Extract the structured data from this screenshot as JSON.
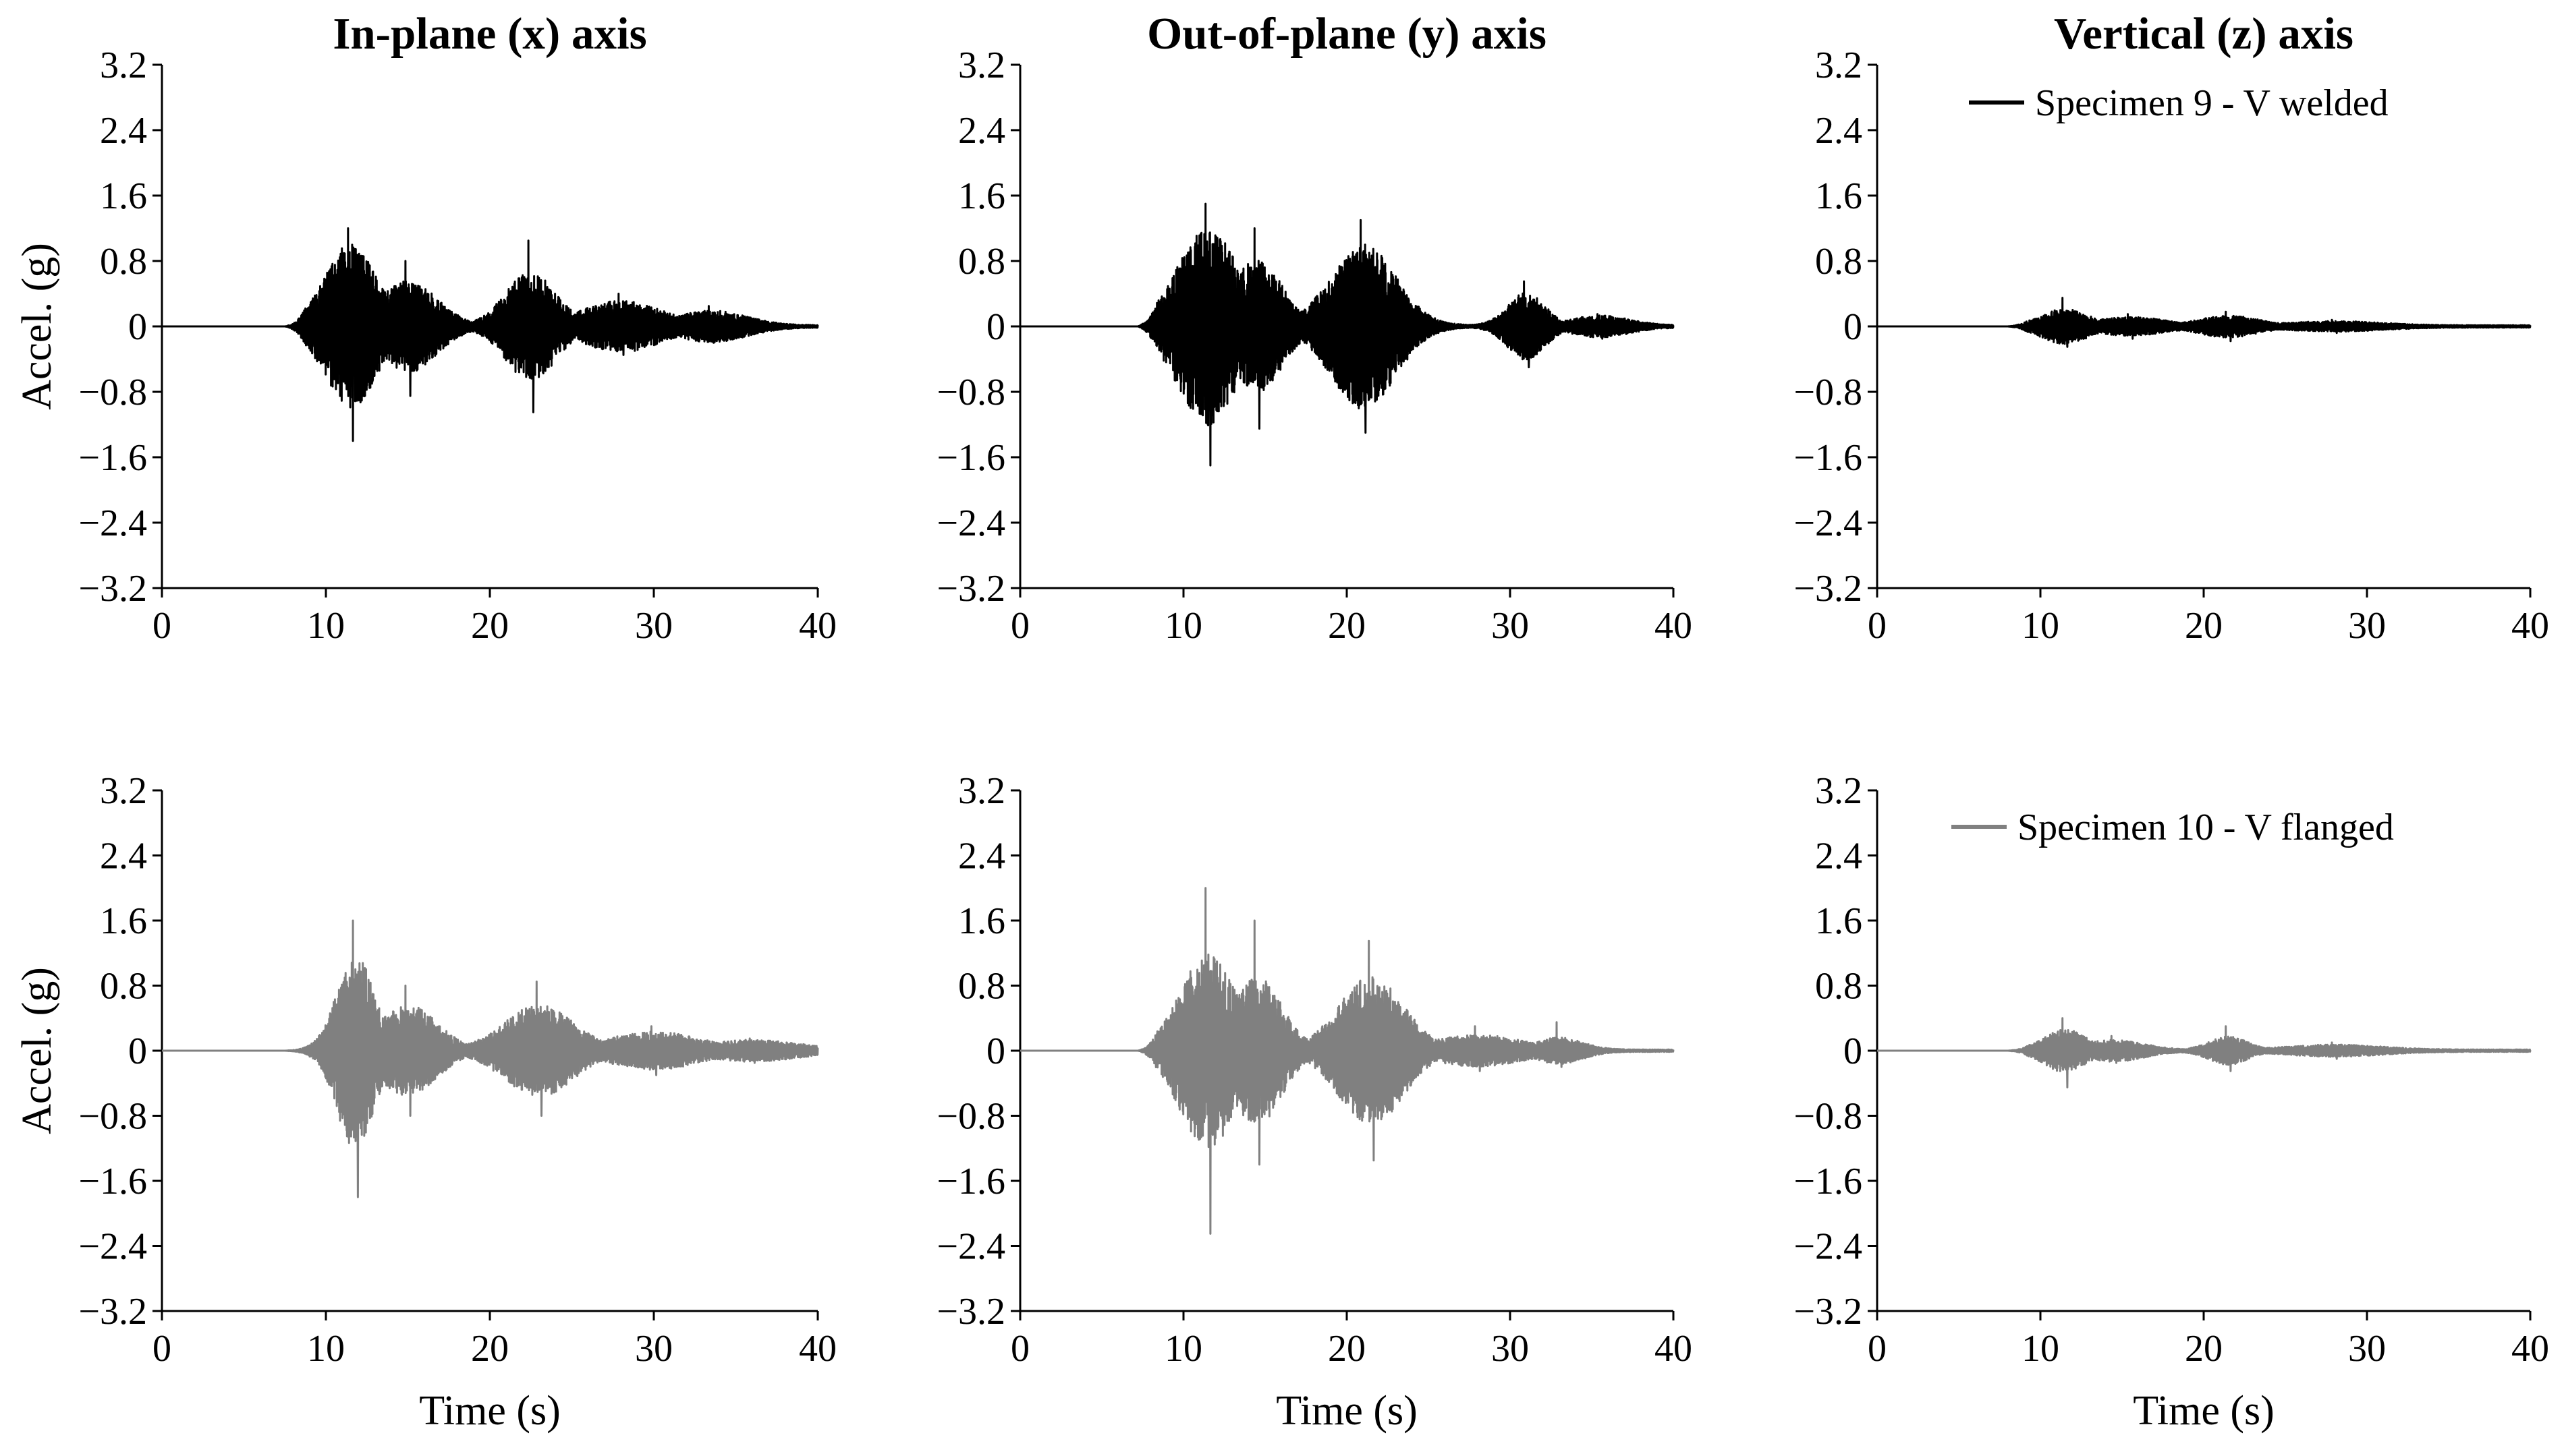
{
  "column_titles": [
    "In-plane (x) axis",
    "Out-of-plane (y) axis",
    "Vertical (z) axis"
  ],
  "chart_data": [
    {
      "type": "line",
      "panel": "row1-col1",
      "column_title": "In-plane (x) axis",
      "ylabel": "Accel. (g)",
      "xlabel": "",
      "xlim": [
        0,
        40
      ],
      "ylim": [
        -3.2,
        3.2
      ],
      "xticks": [
        0,
        10,
        20,
        30,
        40
      ],
      "yticks": [
        3.2,
        2.4,
        1.6,
        0.8,
        0,
        -0.8,
        -1.6,
        -2.4,
        -3.2
      ],
      "series": [
        {
          "name": "Specimen 9 - V welded",
          "color": "#000000",
          "bursts": [
            {
              "center": 11.5,
              "width": 2.2,
              "amp": 1.0,
              "peak_pos": 1.2,
              "peak_neg": -1.4
            },
            {
              "center": 15.0,
              "width": 2.5,
              "amp": 0.55,
              "peak_pos": 0.8,
              "peak_neg": -0.85
            },
            {
              "center": 22.5,
              "width": 2.2,
              "amp": 0.65,
              "peak_pos": 1.05,
              "peak_neg": -1.05
            },
            {
              "center": 28.0,
              "width": 3.5,
              "amp": 0.3,
              "peak_pos": 0.4,
              "peak_neg": -0.35
            },
            {
              "center": 33.5,
              "width": 3.0,
              "amp": 0.18,
              "peak_pos": 0.25,
              "peak_neg": -0.2
            }
          ],
          "onset": 7.5,
          "end": 40
        }
      ]
    },
    {
      "type": "line",
      "panel": "row1-col2",
      "column_title": "Out-of-plane (y) axis",
      "ylabel": "",
      "xlabel": "",
      "xlim": [
        0,
        40
      ],
      "ylim": [
        -3.2,
        3.2
      ],
      "xticks": [
        0,
        10,
        20,
        30,
        40
      ],
      "yticks": [
        3.2,
        2.4,
        1.6,
        0.8,
        0,
        -0.8,
        -1.6,
        -2.4,
        -3.2
      ],
      "series": [
        {
          "name": "Specimen 9 - V welded",
          "color": "#000000",
          "bursts": [
            {
              "center": 11.5,
              "width": 2.6,
              "amp": 1.2,
              "peak_pos": 1.5,
              "peak_neg": -1.7
            },
            {
              "center": 14.5,
              "width": 2.2,
              "amp": 0.8,
              "peak_pos": 1.2,
              "peak_neg": -1.25
            },
            {
              "center": 21.0,
              "width": 2.8,
              "amp": 1.0,
              "peak_pos": 1.3,
              "peak_neg": -1.3
            },
            {
              "center": 31.0,
              "width": 1.6,
              "amp": 0.4,
              "peak_pos": 0.55,
              "peak_neg": -0.5
            },
            {
              "center": 35.5,
              "width": 2.5,
              "amp": 0.12,
              "peak_pos": 0.15,
              "peak_neg": -0.15
            }
          ],
          "onset": 7.2,
          "end": 40
        }
      ]
    },
    {
      "type": "line",
      "panel": "row1-col3",
      "column_title": "Vertical (z) axis",
      "ylabel": "",
      "xlabel": "",
      "xlim": [
        0,
        40
      ],
      "ylim": [
        -3.2,
        3.2
      ],
      "xticks": [
        0,
        10,
        20,
        30,
        40
      ],
      "yticks": [
        3.2,
        2.4,
        1.6,
        0.8,
        0,
        -0.8,
        -1.6,
        -2.4,
        -3.2
      ],
      "legend": {
        "label": "Specimen 9 - V welded",
        "placement": "top-right"
      },
      "series": [
        {
          "name": "Specimen 9 - V welded",
          "color": "#000000",
          "bursts": [
            {
              "center": 11.5,
              "width": 2.0,
              "amp": 0.2,
              "peak_pos": 0.35,
              "peak_neg": -0.25
            },
            {
              "center": 15.5,
              "width": 3.0,
              "amp": 0.1,
              "peak_pos": 0.15,
              "peak_neg": -0.15
            },
            {
              "center": 21.5,
              "width": 2.5,
              "amp": 0.12,
              "peak_pos": 0.18,
              "peak_neg": -0.18
            },
            {
              "center": 28.0,
              "width": 4.0,
              "amp": 0.05,
              "peak_pos": 0.08,
              "peak_neg": -0.08
            }
          ],
          "onset": 8,
          "end": 40
        }
      ]
    },
    {
      "type": "line",
      "panel": "row2-col1",
      "column_title": "In-plane (x) axis",
      "ylabel": "Accel. (g)",
      "xlabel": "Time (s)",
      "xlim": [
        0,
        40
      ],
      "ylim": [
        -3.2,
        3.2
      ],
      "xticks": [
        0,
        10,
        20,
        30,
        40
      ],
      "yticks": [
        3.2,
        2.4,
        1.6,
        0.8,
        0,
        -0.8,
        -1.6,
        -2.4,
        -3.2
      ],
      "series": [
        {
          "name": "Specimen 10 - V flanged",
          "color": "#808080",
          "bursts": [
            {
              "center": 11.8,
              "width": 1.6,
              "amp": 1.2,
              "peak_pos": 1.6,
              "peak_neg": -1.8
            },
            {
              "center": 15.0,
              "width": 2.5,
              "amp": 0.55,
              "peak_pos": 0.8,
              "peak_neg": -0.8
            },
            {
              "center": 23.0,
              "width": 3.0,
              "amp": 0.55,
              "peak_pos": 0.85,
              "peak_neg": -0.8
            },
            {
              "center": 30.0,
              "width": 4.0,
              "amp": 0.22,
              "peak_pos": 0.3,
              "peak_neg": -0.3
            },
            {
              "center": 36.0,
              "width": 4.0,
              "amp": 0.12,
              "peak_pos": 0.15,
              "peak_neg": -0.15
            }
          ],
          "onset": 7.5,
          "end": 40
        }
      ]
    },
    {
      "type": "line",
      "panel": "row2-col2",
      "column_title": "Out-of-plane (y) axis",
      "ylabel": "",
      "xlabel": "Time (s)",
      "xlim": [
        0,
        40
      ],
      "ylim": [
        -3.2,
        3.2
      ],
      "xticks": [
        0,
        10,
        20,
        30,
        40
      ],
      "yticks": [
        3.2,
        2.4,
        1.6,
        0.8,
        0,
        -0.8,
        -1.6,
        -2.4,
        -3.2
      ],
      "series": [
        {
          "name": "Specimen 10 - V flanged",
          "color": "#808080",
          "bursts": [
            {
              "center": 11.5,
              "width": 2.4,
              "amp": 1.2,
              "peak_pos": 2.0,
              "peak_neg": -2.25
            },
            {
              "center": 14.5,
              "width": 2.2,
              "amp": 0.9,
              "peak_pos": 1.6,
              "peak_neg": -1.4
            },
            {
              "center": 21.5,
              "width": 2.8,
              "amp": 0.9,
              "peak_pos": 1.35,
              "peak_neg": -1.35
            },
            {
              "center": 28.0,
              "width": 4.0,
              "amp": 0.18,
              "peak_pos": 0.3,
              "peak_neg": -0.25
            },
            {
              "center": 33.0,
              "width": 2.0,
              "amp": 0.15,
              "peak_pos": 0.35,
              "peak_neg": -0.2
            }
          ],
          "onset": 7.2,
          "end": 40
        }
      ]
    },
    {
      "type": "line",
      "panel": "row2-col3",
      "column_title": "Vertical (z) axis",
      "ylabel": "",
      "xlabel": "Time (s)",
      "xlim": [
        0,
        40
      ],
      "ylim": [
        -3.2,
        3.2
      ],
      "xticks": [
        0,
        10,
        20,
        30,
        40
      ],
      "yticks": [
        3.2,
        2.4,
        1.6,
        0.8,
        0,
        -0.8,
        -1.6,
        -2.4,
        -3.2
      ],
      "legend": {
        "label": "Specimen 10 - V flanged",
        "placement": "top-right"
      },
      "series": [
        {
          "name": "Specimen 10 - V flanged",
          "color": "#808080",
          "bursts": [
            {
              "center": 11.5,
              "width": 1.8,
              "amp": 0.25,
              "peak_pos": 0.4,
              "peak_neg": -0.45
            },
            {
              "center": 14.5,
              "width": 2.5,
              "amp": 0.12,
              "peak_pos": 0.18,
              "peak_neg": -0.15
            },
            {
              "center": 21.5,
              "width": 1.6,
              "amp": 0.16,
              "peak_pos": 0.3,
              "peak_neg": -0.25
            },
            {
              "center": 28.0,
              "width": 4.0,
              "amp": 0.06,
              "peak_pos": 0.1,
              "peak_neg": -0.1
            }
          ],
          "onset": 8,
          "end": 40
        }
      ]
    }
  ]
}
